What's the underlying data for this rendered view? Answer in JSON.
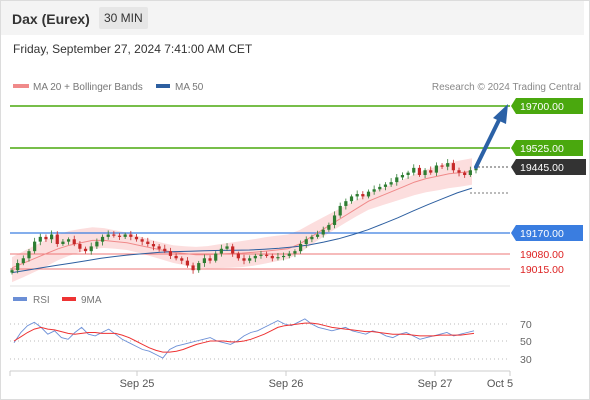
{
  "header": {
    "instrument": "Dax (Eurex)",
    "timeframe": "30 MIN",
    "datetime": "Friday, September 27, 2024 7:41:00 AM CET"
  },
  "legend": {
    "ma20_label": "MA 20 + Bollinger Bands",
    "ma50_label": "MA 50",
    "credit": "Research © 2024 Trading Central"
  },
  "rsi_legend": {
    "rsi_label": "RSI",
    "ma_label": "9MA"
  },
  "colors": {
    "green_level": "#4aa80e",
    "blue_level": "#3a7de0",
    "red_level": "#d44",
    "current_tag": "#333333",
    "ma20": "#f08a8a",
    "ma50": "#2d5fa0",
    "bollinger_fill": "#fbd6d6",
    "candle_up": "#2e7d32",
    "candle_down": "#c62828",
    "arrow": "#2b61a6",
    "rsi_line": "#6b8fd6",
    "rsi_ma": "#e33"
  },
  "chart_data": {
    "type": "candlestick",
    "title": "Dax (Eurex)",
    "timeframe": "30 MIN",
    "price_range": [
      18990,
      19745
    ],
    "x_ticks": [
      "Sep 25",
      "Sep 26",
      "Sep 27",
      "Oct 5"
    ],
    "levels": [
      {
        "price": 19700.0,
        "label": "19700.00",
        "kind": "resistance"
      },
      {
        "price": 19525.0,
        "label": "19525.00",
        "kind": "resistance"
      },
      {
        "price": 19445.0,
        "label": "19445.00",
        "kind": "current"
      },
      {
        "price": 19170.0,
        "label": "19170.00",
        "kind": "pivot"
      },
      {
        "price": 19080.0,
        "label": "19080.00",
        "kind": "support"
      },
      {
        "price": 19015.0,
        "label": "19015.00",
        "kind": "support"
      }
    ],
    "arrow_target": 19700,
    "close_series": [
      19010,
      19040,
      19060,
      19090,
      19130,
      19150,
      19140,
      19160,
      19120,
      19130,
      19140,
      19120,
      19100,
      19090,
      19110,
      19130,
      19150,
      19160,
      19155,
      19150,
      19160,
      19150,
      19140,
      19130,
      19120,
      19110,
      19100,
      19090,
      19070,
      19060,
      19050,
      19030,
      19010,
      19040,
      19060,
      19050,
      19080,
      19100,
      19110,
      19080,
      19060,
      19050,
      19060,
      19070,
      19075,
      19070,
      19060,
      19065,
      19070,
      19080,
      19090,
      19120,
      19140,
      19150,
      19160,
      19180,
      19200,
      19240,
      19280,
      19300,
      19320,
      19330,
      19320,
      19340,
      19350,
      19360,
      19370,
      19380,
      19400,
      19410,
      19420,
      19440,
      19410,
      19430,
      19420,
      19450,
      19445,
      19460,
      19430,
      19420,
      19410,
      19430,
      19445
    ],
    "ma20": [
      19020,
      19040,
      19060,
      19080,
      19100,
      19115,
      19125,
      19135,
      19135,
      19130,
      19125,
      19115,
      19105,
      19095,
      19085,
      19080,
      19075,
      19075,
      19078,
      19080,
      19082,
      19085,
      19090,
      19095,
      19100,
      19120,
      19150,
      19180,
      19210,
      19240,
      19270,
      19300,
      19320,
      19340,
      19360,
      19380,
      19395,
      19405,
      19415,
      19420,
      19425
    ],
    "ma50": [
      19000,
      19010,
      19020,
      19030,
      19040,
      19050,
      19060,
      19068,
      19075,
      19080,
      19085,
      19088,
      19090,
      19092,
      19093,
      19094,
      19095,
      19098,
      19102,
      19108,
      19116,
      19128,
      19142,
      19160,
      19180,
      19205,
      19230,
      19258,
      19285,
      19310,
      19335,
      19355
    ],
    "rsi": {
      "label": "RSI",
      "ma_label": "9MA",
      "ticks": [
        70,
        50,
        30
      ],
      "range": [
        20,
        80
      ],
      "series": [
        48,
        60,
        68,
        72,
        66,
        58,
        62,
        54,
        52,
        60,
        66,
        58,
        56,
        60,
        64,
        58,
        52,
        48,
        44,
        40,
        38,
        34,
        30,
        40,
        44,
        46,
        48,
        50,
        52,
        54,
        50,
        48,
        46,
        50,
        56,
        60,
        62,
        66,
        70,
        74,
        70,
        68,
        72,
        76,
        70,
        66,
        64,
        62,
        64,
        66,
        62,
        60,
        58,
        62,
        60,
        56,
        54,
        58,
        60,
        56,
        52,
        54,
        56,
        58,
        60,
        56,
        58,
        60,
        62
      ],
      "ma_series": [
        50,
        55,
        60,
        64,
        66,
        64,
        63,
        61,
        59,
        58,
        59,
        60,
        60,
        59,
        59,
        59,
        57,
        54,
        50,
        46,
        42,
        39,
        37,
        37,
        38,
        40,
        43,
        46,
        48,
        50,
        50,
        50,
        49,
        49,
        50,
        52,
        55,
        58,
        62,
        66,
        68,
        69,
        70,
        71,
        71,
        70,
        68,
        66,
        65,
        64,
        63,
        62,
        61,
        61,
        60,
        59,
        58,
        58,
        58,
        57,
        56,
        56,
        56,
        57,
        57,
        57,
        57,
        58,
        59
      ]
    }
  }
}
